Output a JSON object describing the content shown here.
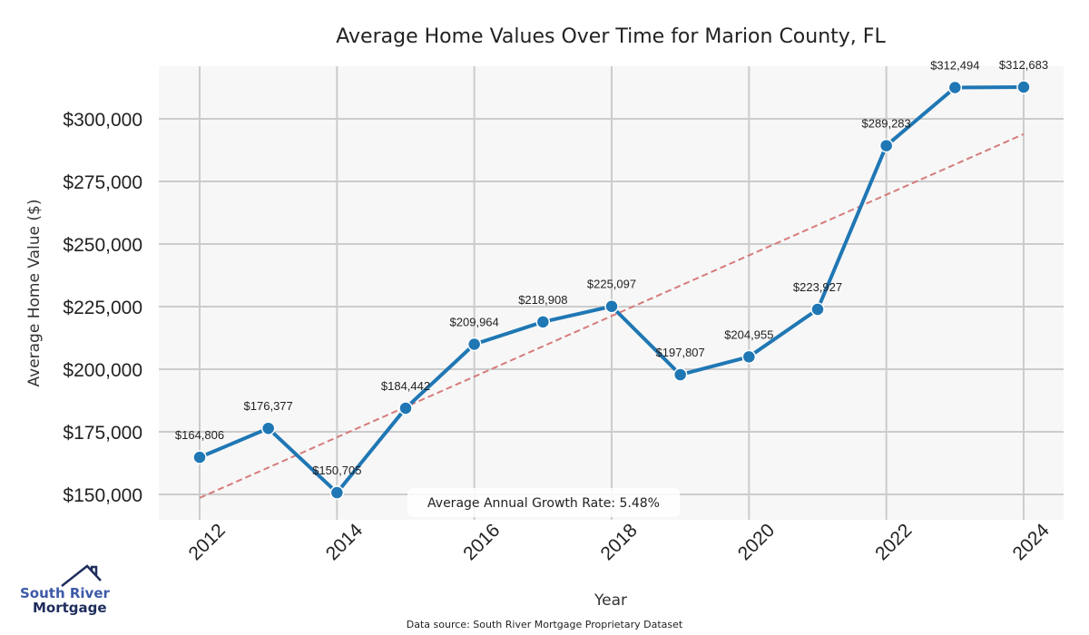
{
  "chart_data": {
    "type": "line",
    "title": "Average Home Values Over Time for Marion County, FL",
    "xlabel": "Year",
    "ylabel": "Average Home Value ($)",
    "x": [
      2012,
      2013,
      2014,
      2015,
      2016,
      2017,
      2018,
      2019,
      2020,
      2021,
      2022,
      2023,
      2024
    ],
    "series": [
      {
        "name": "Average Home Value",
        "color": "#1f77b4",
        "values": [
          164806,
          176377,
          150705,
          184442,
          209964,
          218908,
          225097,
          197807,
          204955,
          223927,
          289283,
          312494,
          312683
        ],
        "labels": [
          "$164,806",
          "$176,377",
          "$150,705",
          "$184,442",
          "$209,964",
          "$218,908",
          "$225,097",
          "$197,807",
          "$204,955",
          "$223,927",
          "$289,283",
          "$312,494",
          "$312,683"
        ]
      },
      {
        "name": "Trend",
        "color": "#d67b7b",
        "style": "dashed",
        "x": [
          2012,
          2024
        ],
        "values": [
          148600,
          293900
        ]
      }
    ],
    "xticks": [
      2012,
      2014,
      2016,
      2018,
      2020,
      2022,
      2024
    ],
    "xtick_labels": [
      "2012",
      "2014",
      "2016",
      "2018",
      "2020",
      "2022",
      "2024"
    ],
    "yticks": [
      150000,
      175000,
      200000,
      225000,
      250000,
      275000,
      300000
    ],
    "ytick_labels": [
      "$150,000",
      "$175,000",
      "$200,000",
      "$225,000",
      "$250,000",
      "$275,000",
      "$300,000"
    ],
    "xlim": [
      2011.4,
      2024.6
    ],
    "ylim": [
      139900,
      321300
    ],
    "grid": true,
    "annotation": "Average Annual Growth Rate: 5.48%",
    "source": "Data source: South River Mortgage Proprietary Dataset"
  },
  "branding": {
    "logo_line1": "South River",
    "logo_line2": "Mortgage"
  }
}
